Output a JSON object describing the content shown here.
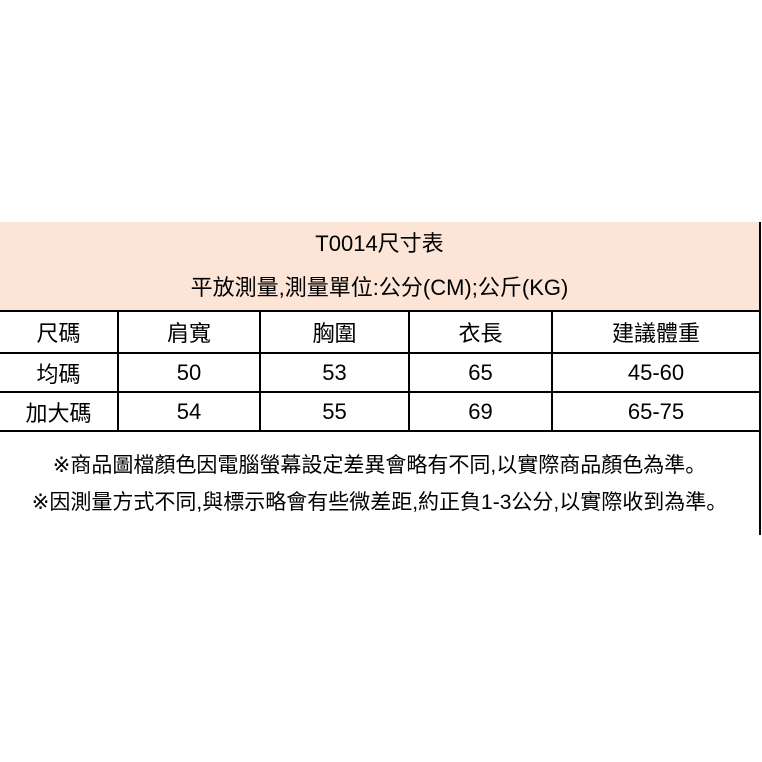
{
  "header": {
    "title": "T0014尺寸表",
    "subtitle": "平放測量,測量單位:公分(CM);公斤(KG)",
    "background": "#fce4d6"
  },
  "table": {
    "columns": [
      "尺碼",
      "肩寬",
      "胸圍",
      "衣長",
      "建議體重"
    ],
    "rows": [
      [
        "均碼",
        "50",
        "53",
        "65",
        "45-60"
      ],
      [
        "加大碼",
        "54",
        "55",
        "69",
        "65-75"
      ]
    ]
  },
  "notes": [
    "※商品圖檔顏色因電腦螢幕設定差異會略有不同,以實際商品顏色為準。",
    "※因測量方式不同,與標示略會有些微差距,約正負1-3公分,以實際收到為準。"
  ],
  "colors": {
    "border": "#000000",
    "text": "#000000",
    "header_background": "#fce4d6",
    "page_background": "#ffffff"
  }
}
